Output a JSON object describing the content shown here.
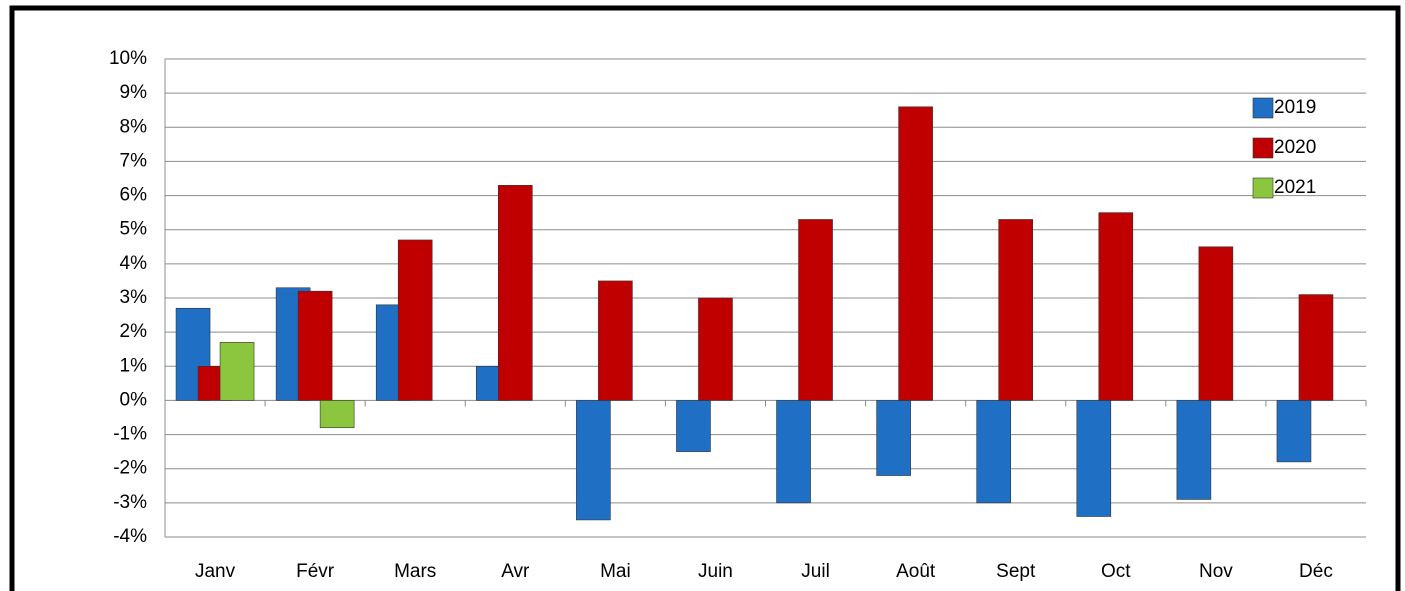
{
  "chart_data": {
    "type": "bar",
    "categories": [
      "Janv",
      "Févr",
      "Mars",
      "Avr",
      "Mai",
      "Juin",
      "Juil",
      "Août",
      "Sept",
      "Oct",
      "Nov",
      "Déc"
    ],
    "series": [
      {
        "name": "2019",
        "color": "#1f6fc4",
        "values": [
          2.7,
          3.3,
          2.8,
          1.0,
          -3.5,
          -1.5,
          -3.0,
          -2.2,
          -3.0,
          -3.4,
          -2.9,
          -1.8
        ]
      },
      {
        "name": "2020",
        "color": "#c00000",
        "values": [
          1.0,
          3.2,
          4.7,
          6.3,
          3.5,
          3.0,
          5.3,
          8.6,
          5.3,
          5.5,
          4.5,
          3.1
        ]
      },
      {
        "name": "2021",
        "color": "#8cc63f",
        "values": [
          1.7,
          -0.8,
          null,
          null,
          null,
          null,
          null,
          null,
          null,
          null,
          null,
          null
        ]
      }
    ],
    "ylim": [
      -4,
      10
    ],
    "yticks": [
      {
        "value": -4,
        "label": "-4%"
      },
      {
        "value": -3,
        "label": "-3%"
      },
      {
        "value": -2,
        "label": "-2%"
      },
      {
        "value": -1,
        "label": "-1%"
      },
      {
        "value": 0,
        "label": "0%"
      },
      {
        "value": 1,
        "label": "1%"
      },
      {
        "value": 2,
        "label": "2%"
      },
      {
        "value": 3,
        "label": "3%"
      },
      {
        "value": 4,
        "label": "4%"
      },
      {
        "value": 5,
        "label": "5%"
      },
      {
        "value": 6,
        "label": "6%"
      },
      {
        "value": 7,
        "label": "7%"
      },
      {
        "value": 8,
        "label": "8%"
      },
      {
        "value": 9,
        "label": "9%"
      },
      {
        "value": 10,
        "label": "10%"
      }
    ],
    "grid": true,
    "legend": "right"
  }
}
